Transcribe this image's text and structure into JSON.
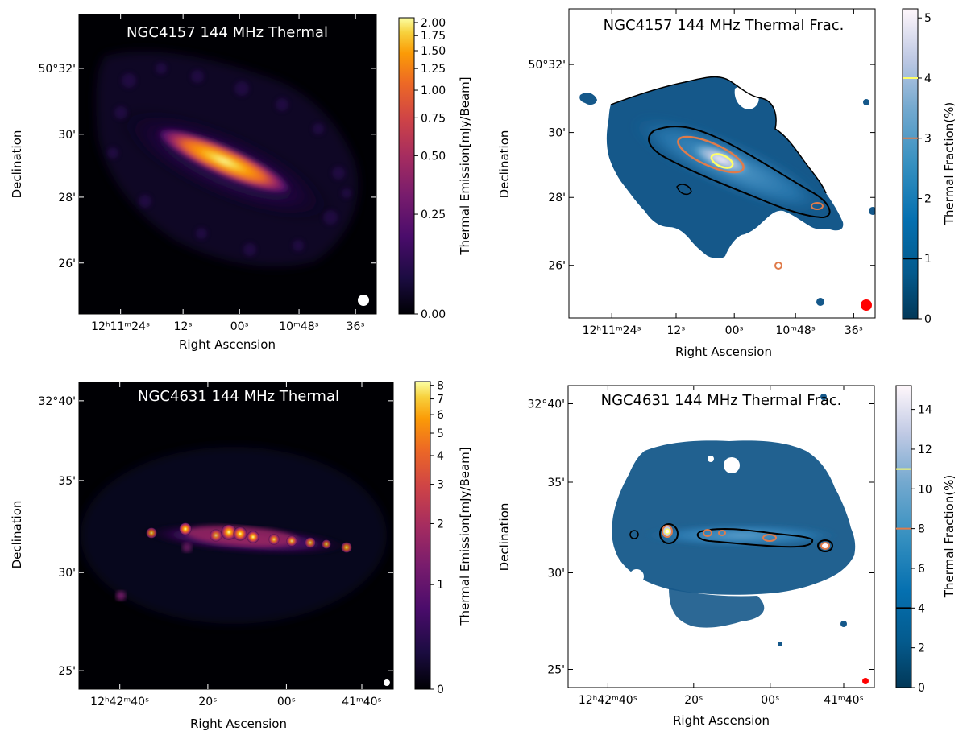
{
  "colors": {
    "panel_dark": "#000004",
    "beam_thermal": "#ffffff",
    "beam_frac": "#ff0000",
    "contour_black": "#000000",
    "contour_orange": "#e07b4a",
    "contour_yellow": "#ffff66",
    "frac_base": "#15588a"
  },
  "chart_data": [
    {
      "id": "ngc4157_thermal",
      "type": "heatmap",
      "title": "NGC4157 144 MHz Thermal",
      "xlabel": "Right Ascension",
      "ylabel": "Declination",
      "xticks": [
        {
          "label": "12ʰ11ᵐ24ˢ",
          "pos": 0.14
        },
        {
          "label": "12ˢ",
          "pos": 0.35
        },
        {
          "label": "00ˢ",
          "pos": 0.54
        },
        {
          "label": "10ᵐ48ˢ",
          "pos": 0.74
        },
        {
          "label": "36ˢ",
          "pos": 0.93
        }
      ],
      "yticks": [
        {
          "label": "50°32'",
          "pos": 0.18
        },
        {
          "label": "30'",
          "pos": 0.4
        },
        {
          "label": "28'",
          "pos": 0.61
        },
        {
          "label": "26'",
          "pos": 0.83
        }
      ],
      "colorbar": {
        "label": "Thermal Emission[mJy/Beam]",
        "colormap": "inferno",
        "scale": "asinh",
        "ticks": [
          "0.00",
          "0.25",
          "0.50",
          "0.75",
          "1.00",
          "1.25",
          "1.50",
          "1.75",
          "2.00"
        ],
        "tick_values": [
          0.0,
          0.25,
          0.5,
          0.75,
          1.0,
          1.25,
          1.5,
          1.75,
          2.0
        ],
        "vmax": 2.1
      }
    },
    {
      "id": "ngc4157_frac",
      "type": "heatmap",
      "title": "NGC4157 144 MHz Thermal Frac.",
      "xlabel": "Right Ascension",
      "ylabel": "Declination",
      "xticks": [
        {
          "label": "12ʰ11ᵐ24ˢ",
          "pos": 0.14
        },
        {
          "label": "12ˢ",
          "pos": 0.35
        },
        {
          "label": "00ˢ",
          "pos": 0.54
        },
        {
          "label": "10ᵐ48ˢ",
          "pos": 0.74
        },
        {
          "label": "36ˢ",
          "pos": 0.93
        }
      ],
      "yticks": [
        {
          "label": "50°32'",
          "pos": 0.18
        },
        {
          "label": "30'",
          "pos": 0.4
        },
        {
          "label": "28'",
          "pos": 0.61
        },
        {
          "label": "26'",
          "pos": 0.83
        }
      ],
      "colorbar": {
        "label": "Thermal Fraction(%)",
        "colormap": "blue-white",
        "scale": "linear",
        "ticks": [
          "0",
          "1",
          "2",
          "3",
          "4",
          "5"
        ],
        "tick_values": [
          0,
          1,
          2,
          3,
          4,
          5
        ],
        "vmax": 5.15,
        "contour_levels": [
          {
            "value": 1,
            "color": "#000000"
          },
          {
            "value": 3,
            "color": "#e07b4a"
          },
          {
            "value": 4,
            "color": "#ffff66"
          }
        ]
      }
    },
    {
      "id": "ngc4631_thermal",
      "type": "heatmap",
      "title": "NGC4631 144 MHz Thermal",
      "xlabel": "Right Ascension",
      "ylabel": "Declination",
      "xticks": [
        {
          "label": "12ʰ42ᵐ40ˢ",
          "pos": 0.13
        },
        {
          "label": "20ˢ",
          "pos": 0.41
        },
        {
          "label": "00ˢ",
          "pos": 0.66
        },
        {
          "label": "41ᵐ40ˢ",
          "pos": 0.9
        }
      ],
      "yticks": [
        {
          "label": "32°40'",
          "pos": 0.06
        },
        {
          "label": "35'",
          "pos": 0.32
        },
        {
          "label": "30'",
          "pos": 0.62
        },
        {
          "label": "25'",
          "pos": 0.94
        }
      ],
      "colorbar": {
        "label": "Thermal Emission[mJy/Beam]",
        "colormap": "inferno",
        "scale": "asinh",
        "ticks": [
          "0",
          "1",
          "2",
          "3",
          "4",
          "5",
          "6",
          "7",
          "8"
        ],
        "tick_values": [
          0,
          1,
          2,
          3,
          4,
          5,
          6,
          7,
          8
        ],
        "vmax": 8.3
      }
    },
    {
      "id": "ngc4631_frac",
      "type": "heatmap",
      "title": "NGC4631 144 MHz Thermal Frac.",
      "xlabel": "Right Ascension",
      "ylabel": "Declination",
      "xticks": [
        {
          "label": "12ʰ42ᵐ40ˢ",
          "pos": 0.13
        },
        {
          "label": "20ˢ",
          "pos": 0.41
        },
        {
          "label": "00ˢ",
          "pos": 0.66
        },
        {
          "label": "41ᵐ40ˢ",
          "pos": 0.9
        }
      ],
      "yticks": [
        {
          "label": "32°40'",
          "pos": 0.06
        },
        {
          "label": "35'",
          "pos": 0.32
        },
        {
          "label": "30'",
          "pos": 0.62
        },
        {
          "label": "25'",
          "pos": 0.94
        }
      ],
      "colorbar": {
        "label": "Thermal Fraction(%)",
        "colormap": "blue-white",
        "scale": "linear",
        "ticks": [
          "0",
          "2",
          "4",
          "6",
          "8",
          "10",
          "12",
          "14"
        ],
        "tick_values": [
          0,
          2,
          4,
          6,
          8,
          10,
          12,
          14
        ],
        "vmax": 15.2,
        "contour_levels": [
          {
            "value": 4,
            "color": "#000000"
          },
          {
            "value": 8,
            "color": "#e07b4a"
          },
          {
            "value": 11,
            "color": "#ffff66"
          }
        ]
      }
    }
  ]
}
